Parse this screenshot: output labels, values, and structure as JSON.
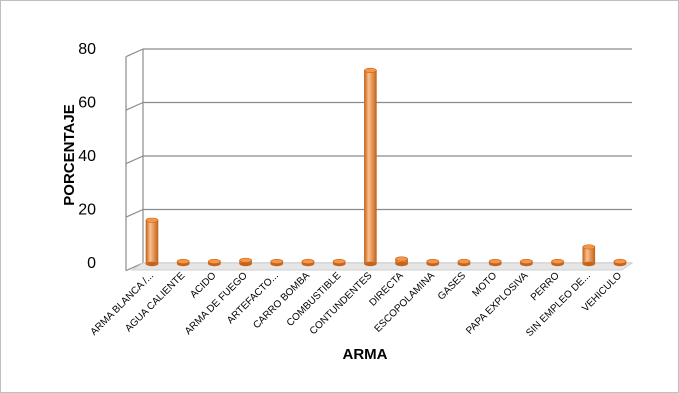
{
  "chart_data": {
    "type": "bar",
    "title": "",
    "xlabel": "ARMA",
    "ylabel": "PORCENTAJE",
    "categories": [
      "ARMA BLANCA /...",
      "AGUA CALIENTE",
      "ACIDO",
      "ARMA DE FUEGO",
      "ARTEFACTO...",
      "CARRO BOMBA",
      "COMBUSTIBLE",
      "CONTUNDENTES",
      "DIRECTA",
      "ESCOPOLAMINA",
      "GASES",
      "MOTO",
      "PAPA EXPLOSIVA",
      "PERRO",
      "SIN EMPLEO DE...",
      "VEHICULO"
    ],
    "values": [
      16,
      0.1,
      0.1,
      1,
      0.1,
      0.1,
      0.2,
      72,
      1.5,
      0.1,
      0.1,
      0.2,
      0.1,
      0.5,
      6,
      0.3
    ],
    "ylim": [
      0,
      80
    ],
    "yticks": [
      "0",
      "20",
      "40",
      "60",
      "80"
    ],
    "grid": true,
    "legend": "none",
    "colors": {
      "bar": "#f79646",
      "bar_dark": "#c5641b",
      "bar_light": "#fbc08e",
      "grid": "#8c8c8c"
    }
  }
}
